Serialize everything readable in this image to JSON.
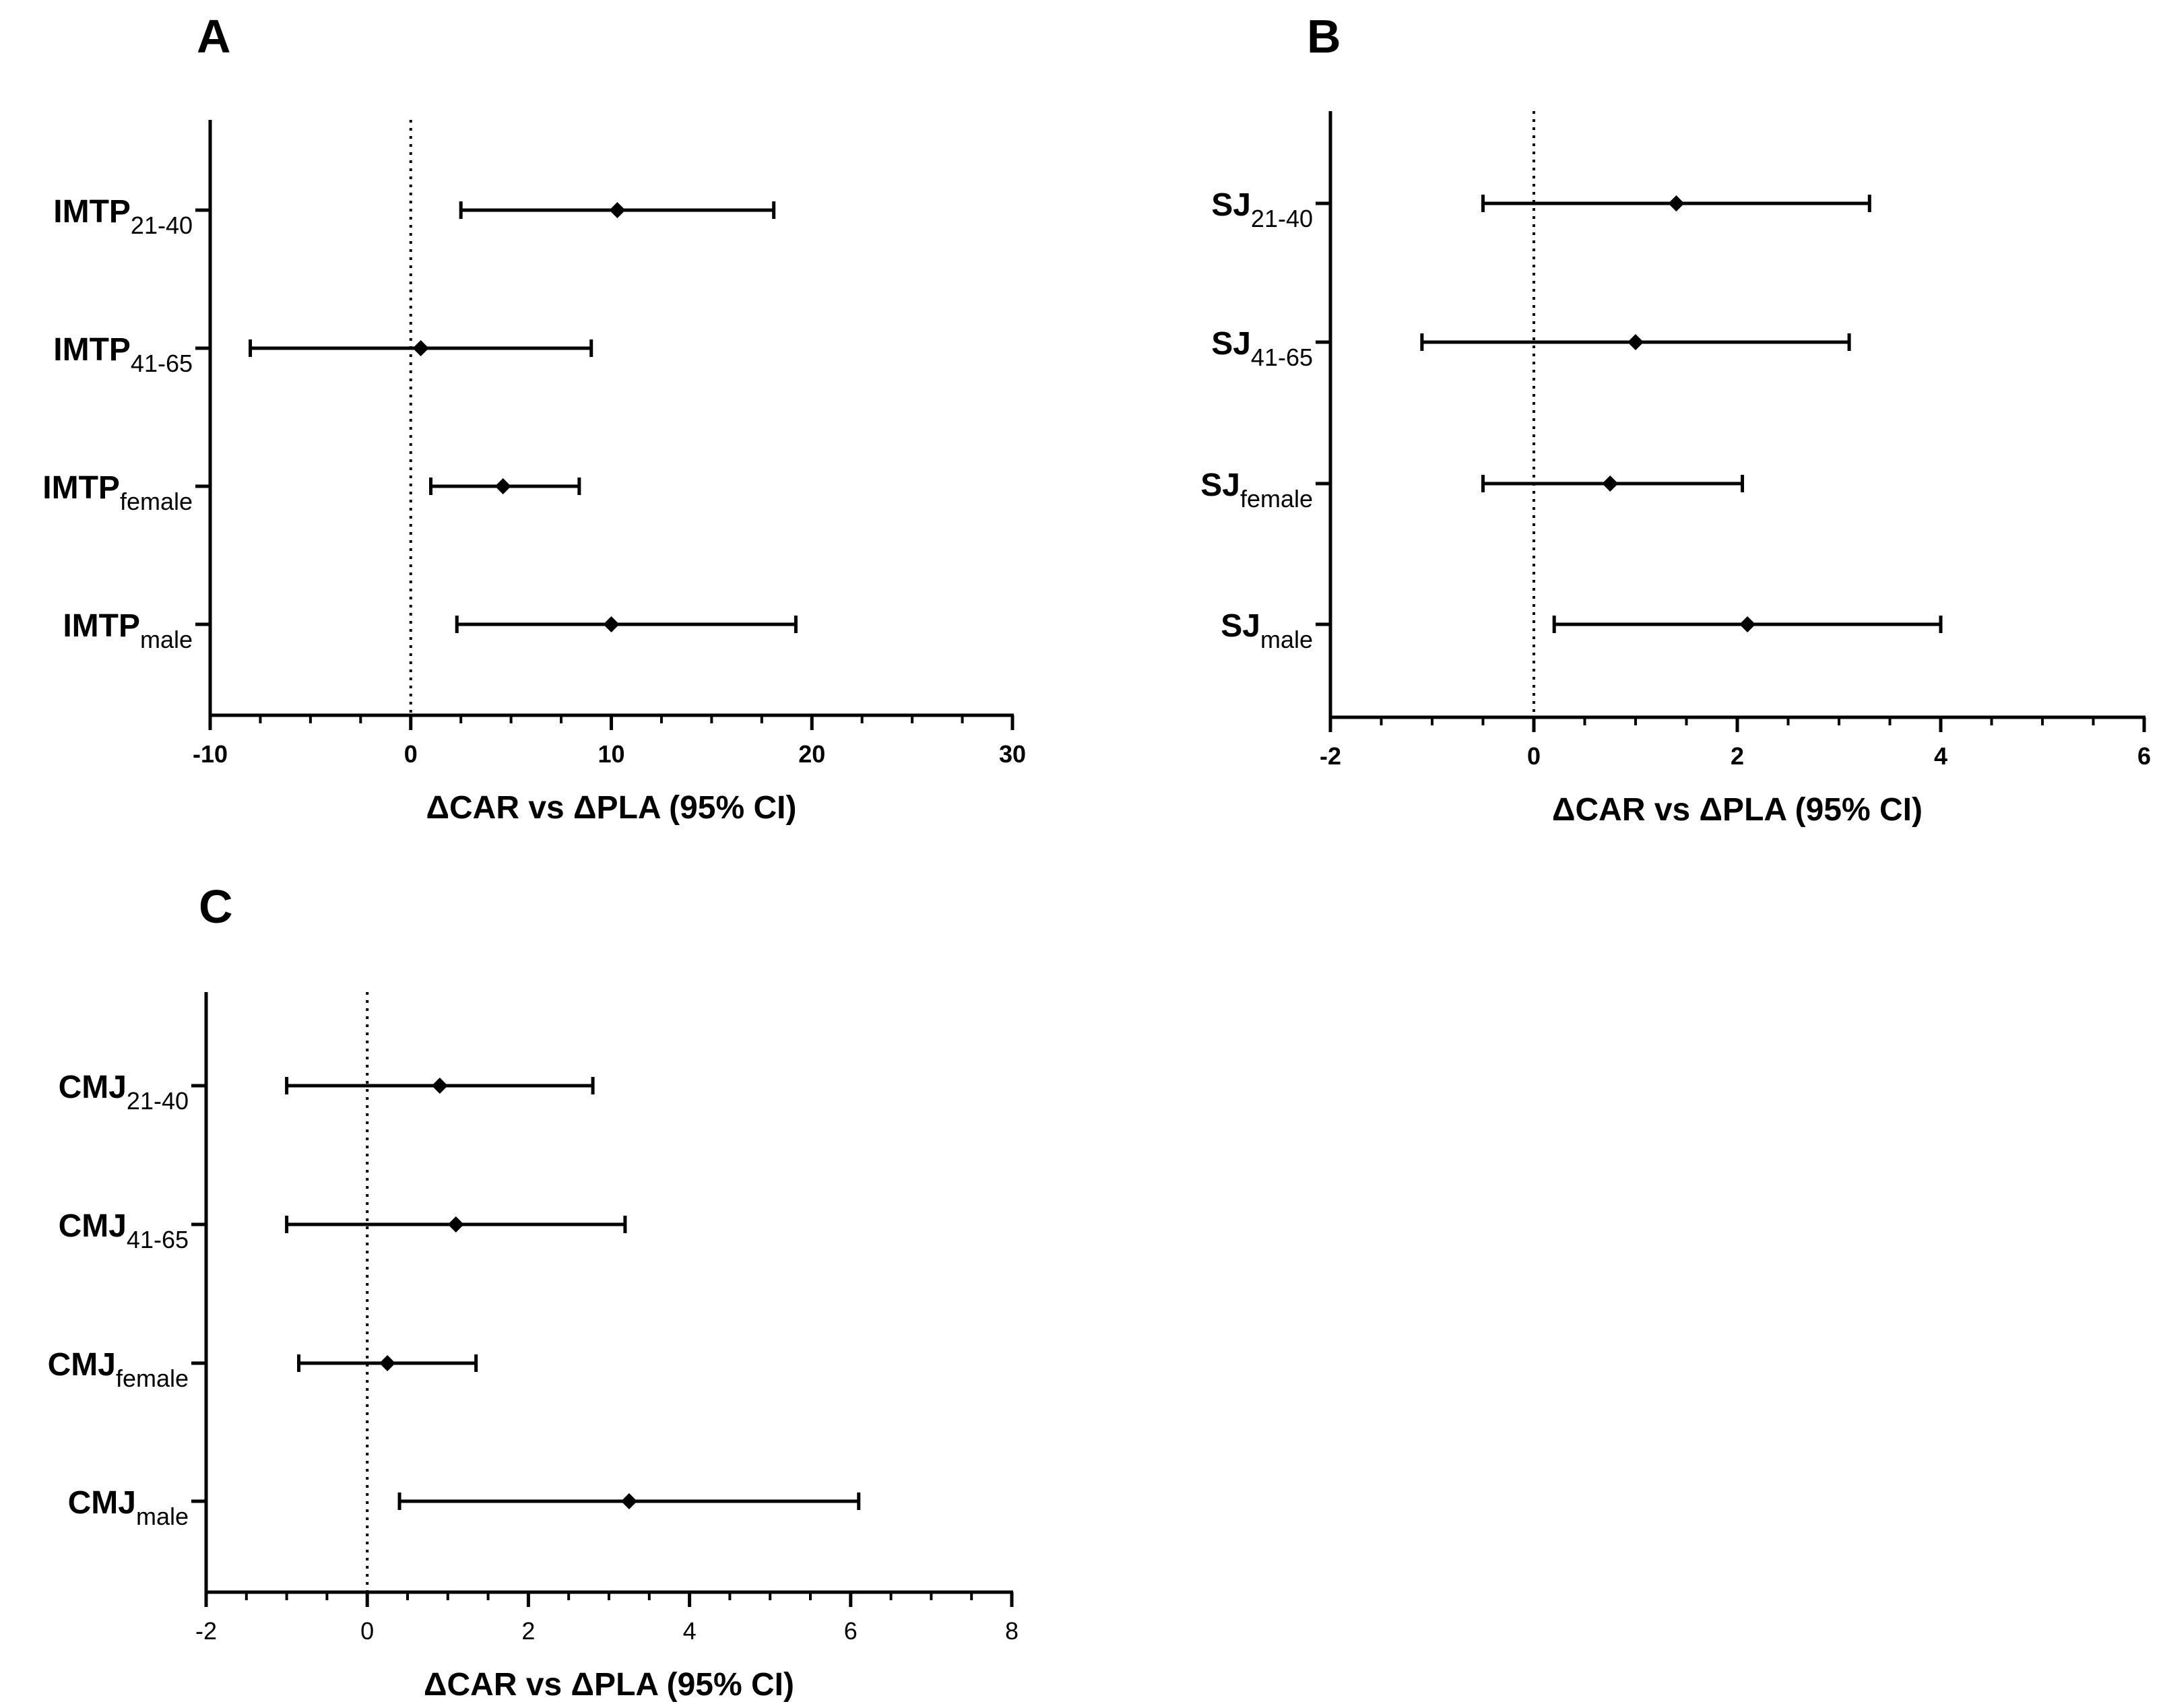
{
  "chart_data": [
    {
      "type": "forest",
      "panel": "A",
      "xlabel": "ΔCAR vs ΔPLA (95% CI)",
      "xlim": [
        -10,
        30
      ],
      "major_ticks": [
        -10,
        0,
        10,
        20,
        30
      ],
      "tick_labels": [
        "-10",
        "0",
        "10",
        "20",
        "30"
      ],
      "minor_step": 2.5,
      "reference_line": 0,
      "rows": [
        {
          "label": "IMTP",
          "sub": "21-40",
          "estimate": 10.3,
          "lower": 2.5,
          "upper": 18.1
        },
        {
          "label": "IMTP",
          "sub": "41-65",
          "estimate": 0.5,
          "lower": -8.0,
          "upper": 9.0
        },
        {
          "label": "IMTP",
          "sub": "female",
          "estimate": 4.6,
          "lower": 1.0,
          "upper": 8.4
        },
        {
          "label": "IMTP",
          "sub": "male",
          "estimate": 10.0,
          "lower": 2.3,
          "upper": 19.2
        }
      ]
    },
    {
      "type": "forest",
      "panel": "B",
      "xlabel": "ΔCAR vs ΔPLA (95% CI)",
      "xlim": [
        -2,
        6
      ],
      "major_ticks": [
        -2,
        0,
        2,
        4,
        6
      ],
      "tick_labels": [
        "-2",
        "0",
        "2",
        "4",
        "6"
      ],
      "minor_step": 0.5,
      "reference_line": 0,
      "rows": [
        {
          "label": "SJ",
          "sub": "21-40",
          "estimate": 1.4,
          "lower": -0.5,
          "upper": 3.3
        },
        {
          "label": "SJ",
          "sub": "41-65",
          "estimate": 1.0,
          "lower": -1.1,
          "upper": 3.1
        },
        {
          "label": "SJ",
          "sub": "female",
          "estimate": 0.75,
          "lower": -0.5,
          "upper": 2.05
        },
        {
          "label": "SJ",
          "sub": "male",
          "estimate": 2.1,
          "lower": 0.2,
          "upper": 4.0
        }
      ]
    },
    {
      "type": "forest",
      "panel": "C",
      "xlabel": "ΔCAR vs ΔPLA (95% CI)",
      "xlim": [
        -2,
        8
      ],
      "major_ticks": [
        -2,
        0,
        2,
        4,
        6,
        8
      ],
      "tick_labels": [
        "-2",
        "0",
        "2",
        "4",
        "6",
        "8"
      ],
      "minor_step": 0.5,
      "reference_line": 0,
      "rows": [
        {
          "label": "CMJ",
          "sub": "21-40",
          "estimate": 0.9,
          "lower": -1.0,
          "upper": 2.8
        },
        {
          "label": "CMJ",
          "sub": "41-65",
          "estimate": 1.1,
          "lower": -1.0,
          "upper": 3.2
        },
        {
          "label": "CMJ",
          "sub": "female",
          "estimate": 0.25,
          "lower": -0.85,
          "upper": 1.35
        },
        {
          "label": "CMJ",
          "sub": "male",
          "estimate": 3.25,
          "lower": 0.4,
          "upper": 6.1
        }
      ]
    }
  ]
}
